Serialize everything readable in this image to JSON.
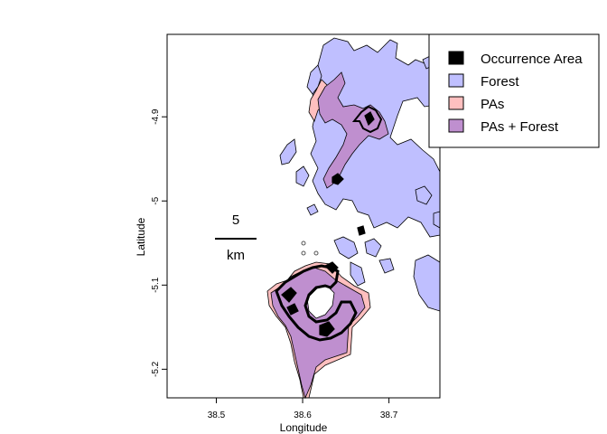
{
  "map": {
    "xlabel": "Longitude",
    "ylabel": "Latitude",
    "x_ticks": [
      {
        "value": 38.5,
        "label": "38.5"
      },
      {
        "value": 38.6,
        "label": "38.6"
      },
      {
        "value": 38.7,
        "label": "38.7"
      }
    ],
    "y_ticks": [
      {
        "value": -4.9,
        "label": "-4.9"
      },
      {
        "value": -5.0,
        "label": "-5"
      },
      {
        "value": -5.1,
        "label": "-5.1"
      },
      {
        "value": -5.2,
        "label": "-5.2"
      }
    ],
    "xlim": [
      38.443,
      38.759
    ],
    "ylim": [
      -5.234,
      -4.802
    ],
    "scale_bar": {
      "distance": "5",
      "unit": "km"
    },
    "legend": [
      {
        "label": "Occurrence Area",
        "color": "#000000"
      },
      {
        "label": "Forest",
        "color": "#bfbfff"
      },
      {
        "label": "PAs",
        "color": "#ffbfbf"
      },
      {
        "label": "PAs + Forest",
        "color": "#bf8fcf"
      }
    ],
    "colors": {
      "forest": "#bfbfff",
      "pas": "#ffbfbf",
      "pas_forest": "#bf8fcf",
      "occurrence": "#000000"
    }
  }
}
